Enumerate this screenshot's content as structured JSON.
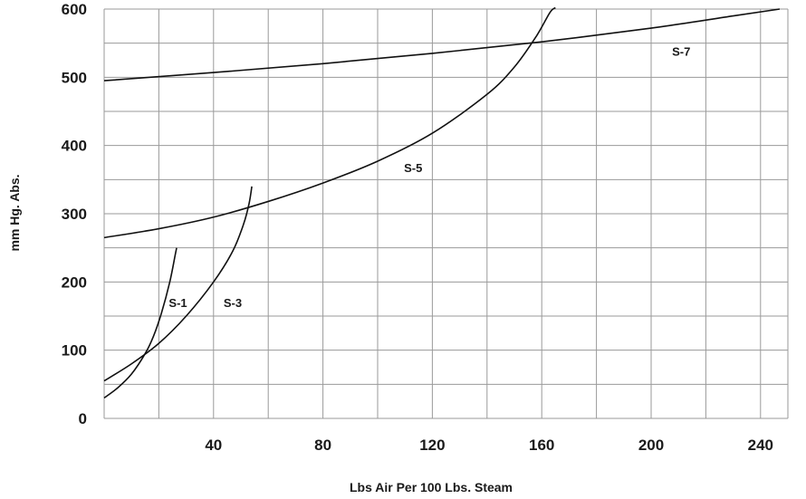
{
  "chart_data": {
    "type": "line",
    "title": "",
    "xlabel": "Lbs Air Per 100 Lbs. Steam",
    "ylabel": "mm Hg. Abs.",
    "xlim": [
      0,
      250
    ],
    "ylim": [
      0,
      600
    ],
    "x_ticks": [
      40,
      80,
      120,
      160,
      200,
      240
    ],
    "x_tick_labels": [
      "40",
      "80",
      "120",
      "160",
      "200",
      "240"
    ],
    "y_ticks": [
      0,
      100,
      200,
      300,
      400,
      500,
      600
    ],
    "y_tick_labels": [
      "0",
      "100",
      "200",
      "300",
      "400",
      "500",
      "600"
    ],
    "x_grid_step": 20,
    "y_grid_step": 50,
    "grid": true,
    "legend": "none",
    "line_color": "#111111",
    "grid_color": "#9a9a9a",
    "series": [
      {
        "name": "S-1",
        "label_at": [
          27,
          170
        ],
        "points": [
          [
            0,
            30
          ],
          [
            5,
            45
          ],
          [
            10,
            65
          ],
          [
            15,
            95
          ],
          [
            18,
            120
          ],
          [
            21,
            155
          ],
          [
            24,
            200
          ],
          [
            26,
            240
          ],
          [
            26.5,
            250
          ]
        ]
      },
      {
        "name": "S-3",
        "label_at": [
          47,
          170
        ],
        "points": [
          [
            0,
            55
          ],
          [
            10,
            80
          ],
          [
            20,
            110
          ],
          [
            30,
            150
          ],
          [
            40,
            200
          ],
          [
            47,
            245
          ],
          [
            51,
            285
          ],
          [
            53,
            315
          ],
          [
            54,
            340
          ]
        ]
      },
      {
        "name": "S-5",
        "label_at": [
          113,
          368
        ],
        "points": [
          [
            0,
            265
          ],
          [
            20,
            278
          ],
          [
            40,
            295
          ],
          [
            60,
            318
          ],
          [
            80,
            345
          ],
          [
            100,
            377
          ],
          [
            120,
            418
          ],
          [
            140,
            475
          ],
          [
            150,
            515
          ],
          [
            158,
            560
          ],
          [
            163,
            595
          ],
          [
            165,
            602
          ]
        ]
      },
      {
        "name": "S-7",
        "label_at": [
          211,
          538
        ],
        "points": [
          [
            0,
            495
          ],
          [
            40,
            507
          ],
          [
            80,
            520
          ],
          [
            120,
            535
          ],
          [
            160,
            552
          ],
          [
            200,
            572
          ],
          [
            230,
            590
          ],
          [
            247,
            600
          ]
        ]
      }
    ]
  }
}
